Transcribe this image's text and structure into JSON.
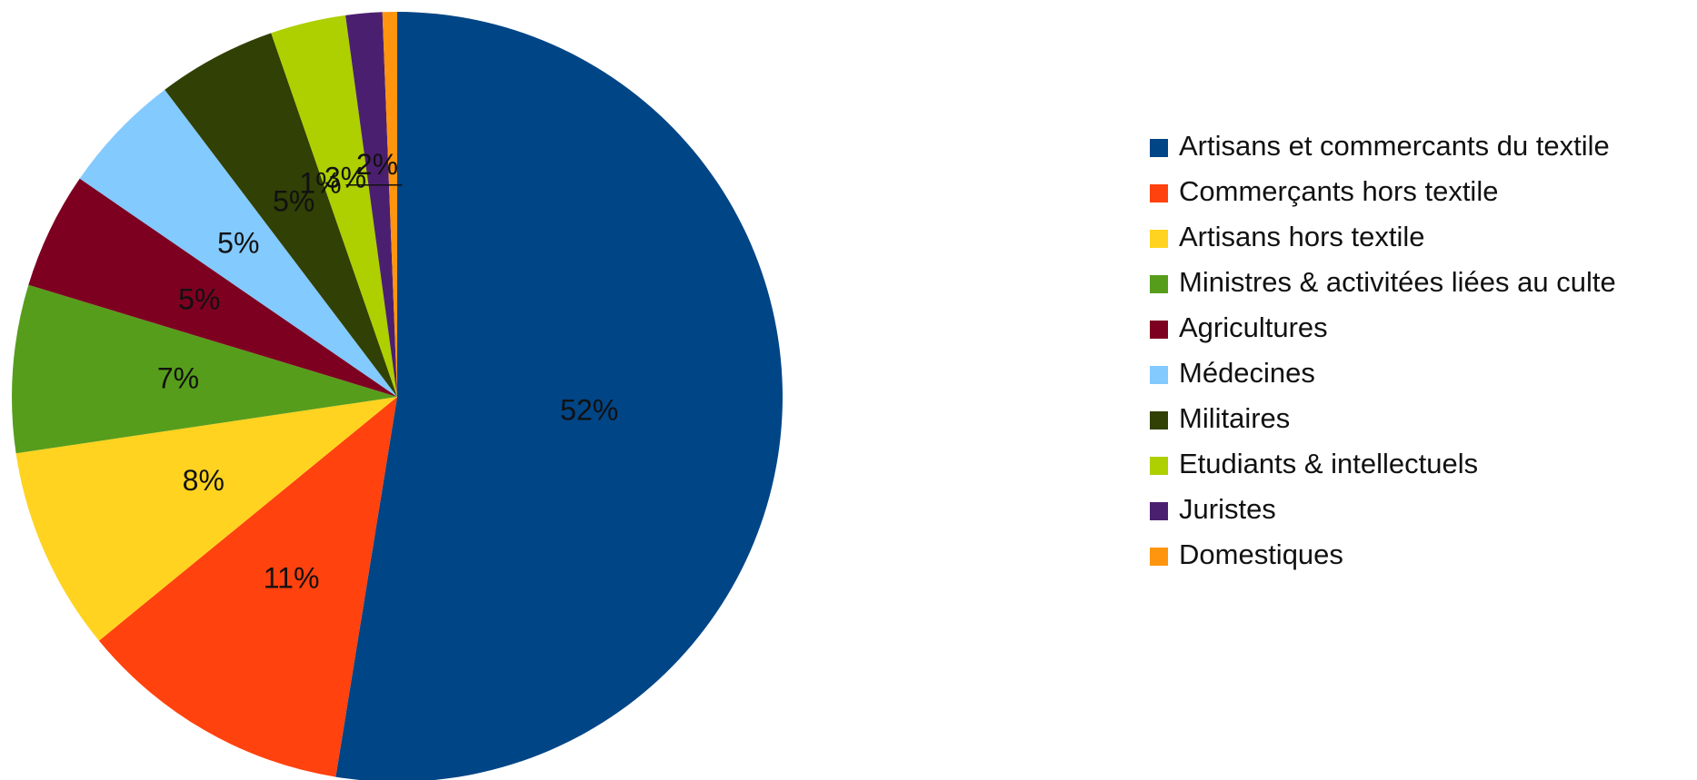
{
  "chart_data": {
    "type": "pie",
    "title": "",
    "legend_position": "right",
    "categories": [
      "Artisans et commercants du textile",
      "Commerçants hors textile",
      "Artisans hors textile",
      "Ministres & activitées liées au culte",
      "Agricultures",
      "Médecines",
      "Militaires",
      "Etudiants & intellectuels",
      "Juristes",
      "Domestiques"
    ],
    "values": [
      51.5,
      11.3,
      8.4,
      6.9,
      4.8,
      5.0,
      4.9,
      3.1,
      1.5,
      0.6
    ],
    "labels": [
      "52%",
      "11%",
      "8%",
      "7%",
      "5%",
      "5%",
      "5%",
      "3%",
      "2%",
      "1%"
    ],
    "colors": [
      "#004586",
      "#ff420e",
      "#ffd320",
      "#579d1c",
      "#7e0021",
      "#83caff",
      "#314004",
      "#aecf00",
      "#4b1f6f",
      "#ff950e"
    ],
    "start_angle_deg": 0,
    "direction": "clockwise-from-top"
  }
}
